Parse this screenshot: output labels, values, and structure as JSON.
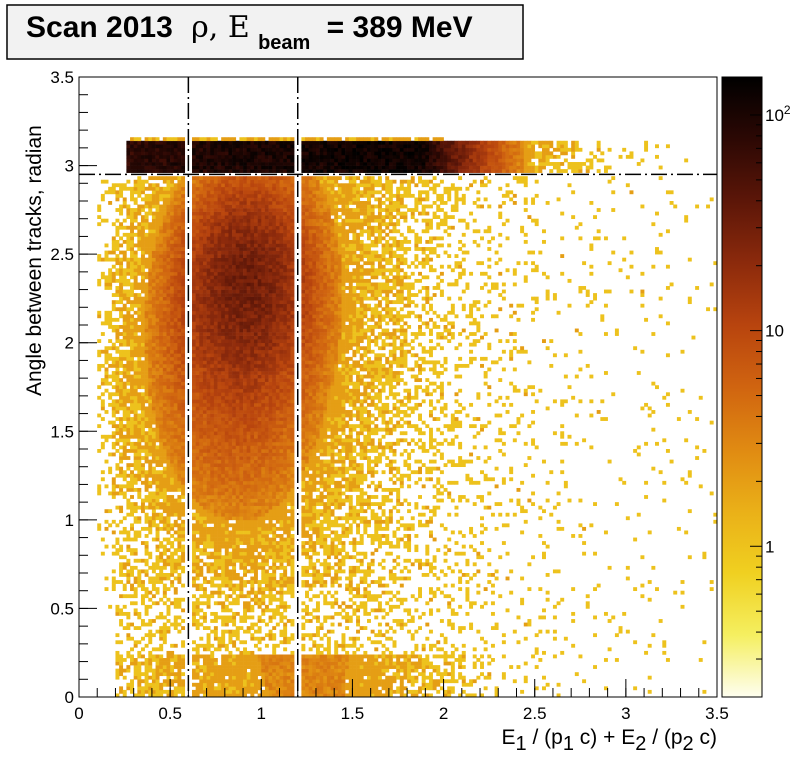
{
  "chart_data": {
    "type": "heatmap",
    "title": {
      "main": "Scan 2013",
      "symbol": "ρ, E",
      "symbol_sub": "beam",
      "tail": "= 389 MeV"
    },
    "xlabel": {
      "p1": "E",
      "s1": "1",
      "p2": " / (p",
      "s2": "1",
      "p3": " c) + E",
      "s3": "2",
      "p4": " / (p",
      "s4": "2",
      "p5": " c)"
    },
    "ylabel": "Angle between tracks, radian",
    "xlim": [
      0,
      3.5
    ],
    "ylim": [
      0,
      3.5
    ],
    "x_ticks": [
      "0",
      "0.5",
      "1",
      "1.5",
      "2",
      "2.5",
      "3",
      "3.5"
    ],
    "y_ticks": [
      "0",
      "0.5",
      "1",
      "1.5",
      "2",
      "2.5",
      "3",
      "3.5"
    ],
    "z_scale": "log",
    "zlim": [
      0.2,
      150
    ],
    "z_ticks": [
      {
        "value": 1,
        "label": "1"
      },
      {
        "value": 10,
        "label": "10"
      },
      {
        "value": 100,
        "label": "10",
        "sup": "2"
      }
    ],
    "colormap": [
      "#fefef0",
      "#f5ef60",
      "#f0d020",
      "#eab018",
      "#e08a12",
      "#d06410",
      "#b8440e",
      "#8c2a0c",
      "#5c1608",
      "#2c0804",
      "#000000"
    ],
    "cut_lines": [
      {
        "orientation": "vertical",
        "x": 0.6,
        "style": "dash-dot"
      },
      {
        "orientation": "vertical",
        "x": 1.2,
        "style": "dash-dot"
      },
      {
        "orientation": "horizontal",
        "y": 2.95,
        "style": "dash-dot"
      }
    ],
    "grid": false,
    "bins": {
      "nx": 175,
      "ny": 175
    },
    "density_regions": [
      {
        "description": "back-to-back band",
        "x_range": [
          0.25,
          2.5
        ],
        "y_range": [
          2.95,
          3.14
        ],
        "peak": 150
      },
      {
        "description": "main cluster",
        "x_center": 0.9,
        "y_center": 2.25,
        "peak": 22
      },
      {
        "description": "low-angle band",
        "x_range": [
          0.2,
          2.3
        ],
        "y_range": [
          0.0,
          0.25
        ],
        "peak": 3
      }
    ]
  }
}
